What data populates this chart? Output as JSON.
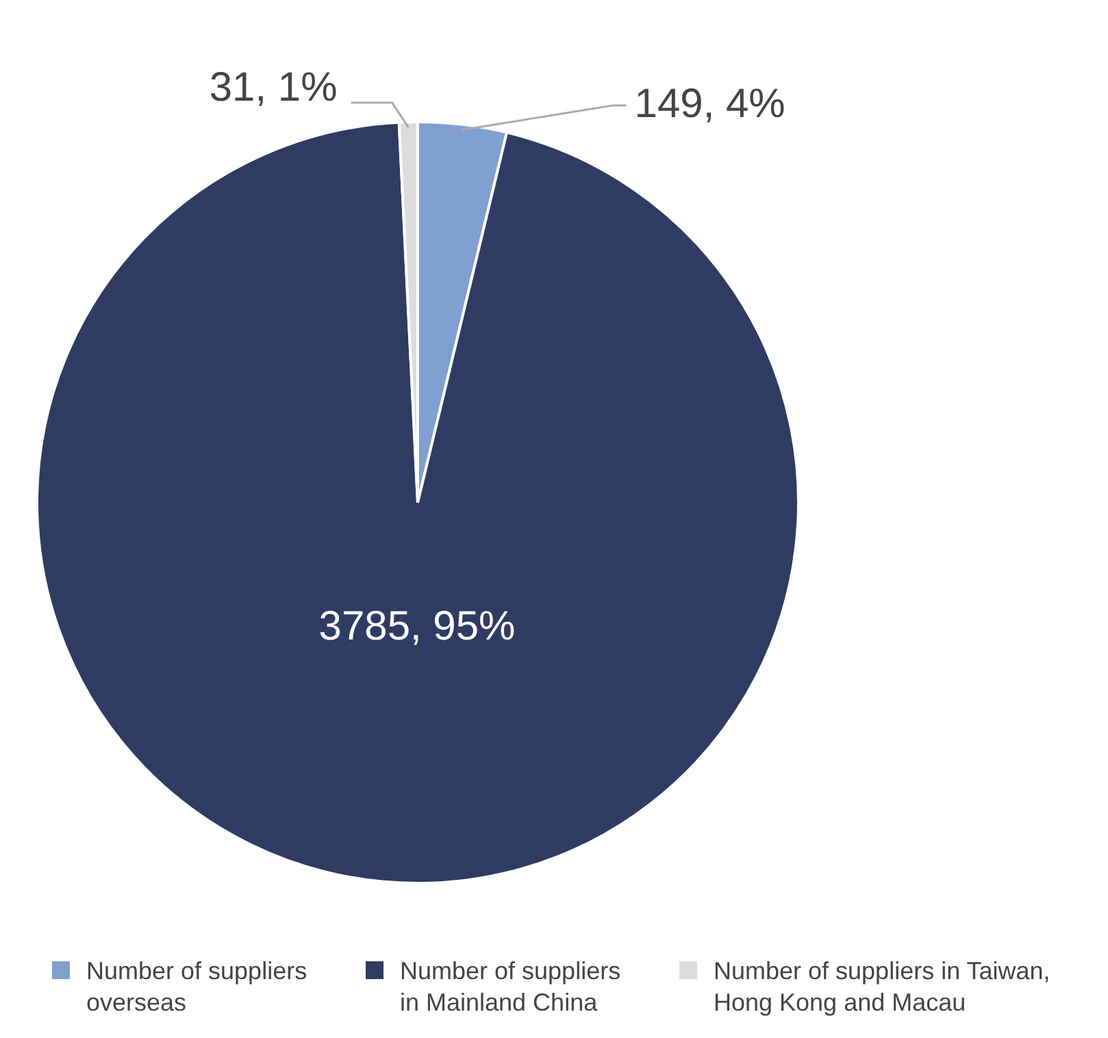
{
  "chart_data": {
    "type": "pie",
    "categories": [
      "Number of suppliers overseas",
      "Number of suppliers in Mainland China",
      "Number of suppliers in Taiwan, Hong Kong and Macau"
    ],
    "values": [
      149,
      3785,
      31
    ],
    "colors": [
      "#7f9fd0",
      "#2e3b63",
      "#dcdcdc"
    ],
    "value_labels": [
      "149, 4%",
      "3785, 95%",
      "31, 1%"
    ],
    "legend": "bottom"
  }
}
